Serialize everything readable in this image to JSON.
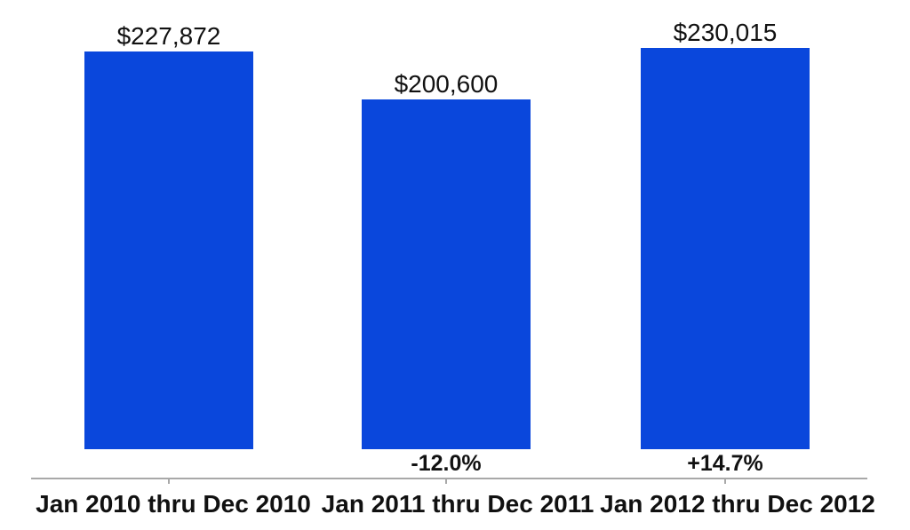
{
  "chart_data": {
    "type": "bar",
    "categories": [
      "Jan 2010 thru Dec 2010",
      "Jan 2011 thru Dec 2011",
      "Jan 2012 thru Dec 2012"
    ],
    "values": [
      227872,
      200600,
      230015
    ],
    "value_labels": [
      "$227,872",
      "$200,600",
      "$230,015"
    ],
    "delta_labels": [
      "",
      "-12.0%",
      "+14.7%"
    ],
    "ylim": [
      0,
      230015
    ],
    "grid": false,
    "legend": "none",
    "bar_color": "#0A47DC",
    "axis_line_color": "#A8A8A8",
    "label_color": "#111111"
  }
}
